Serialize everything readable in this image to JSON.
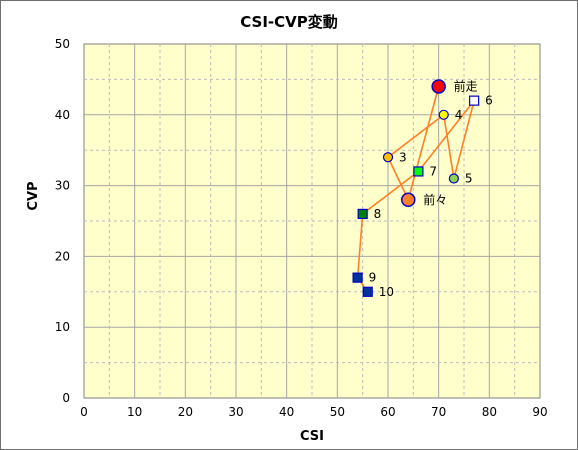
{
  "chart_data": {
    "type": "scatter",
    "title": "CSI-CVP変動",
    "xlabel": "CSI",
    "ylabel": "CVP",
    "xlim": [
      0,
      90
    ],
    "ylim": [
      0,
      50
    ],
    "xticks": [
      0,
      10,
      20,
      30,
      40,
      50,
      60,
      70,
      80,
      90
    ],
    "yticks": [
      0,
      10,
      20,
      30,
      40,
      50
    ],
    "grid": true,
    "plot_background": "#ffffcc",
    "line_color": "#ff7f27",
    "path_order": [
      "10",
      "9",
      "8",
      "7",
      "6",
      "5",
      "4",
      "3",
      "前々",
      "前走"
    ],
    "points": [
      {
        "label": "前走",
        "x": 70,
        "y": 44,
        "marker": "circle",
        "size": "large",
        "fill": "#ff0000",
        "stroke": "#0000cc"
      },
      {
        "label": "前々",
        "x": 64,
        "y": 28,
        "marker": "circle",
        "size": "large",
        "fill": "#ff7f27",
        "stroke": "#0000cc"
      },
      {
        "label": "3",
        "x": 60,
        "y": 34,
        "marker": "circle",
        "size": "small",
        "fill": "#ffc000",
        "stroke": "#0000cc"
      },
      {
        "label": "4",
        "x": 71,
        "y": 40,
        "marker": "circle",
        "size": "small",
        "fill": "#ffff00",
        "stroke": "#0000cc"
      },
      {
        "label": "5",
        "x": 73,
        "y": 31,
        "marker": "circle",
        "size": "small",
        "fill": "#92d050",
        "stroke": "#0000cc"
      },
      {
        "label": "6",
        "x": 77,
        "y": 42,
        "marker": "square",
        "size": "small",
        "fill": "#ffffff",
        "stroke": "#0000cc"
      },
      {
        "label": "7",
        "x": 66,
        "y": 32,
        "marker": "square",
        "size": "small",
        "fill": "#00ff00",
        "stroke": "#0000cc"
      },
      {
        "label": "8",
        "x": 55,
        "y": 26,
        "marker": "square",
        "size": "small",
        "fill": "#008000",
        "stroke": "#0000cc"
      },
      {
        "label": "9",
        "x": 54,
        "y": 17,
        "marker": "square",
        "size": "small",
        "fill": "#003399",
        "stroke": "#0000cc"
      },
      {
        "label": "10",
        "x": 56,
        "y": 15,
        "marker": "square",
        "size": "small",
        "fill": "#003399",
        "stroke": "#0000cc"
      }
    ]
  }
}
